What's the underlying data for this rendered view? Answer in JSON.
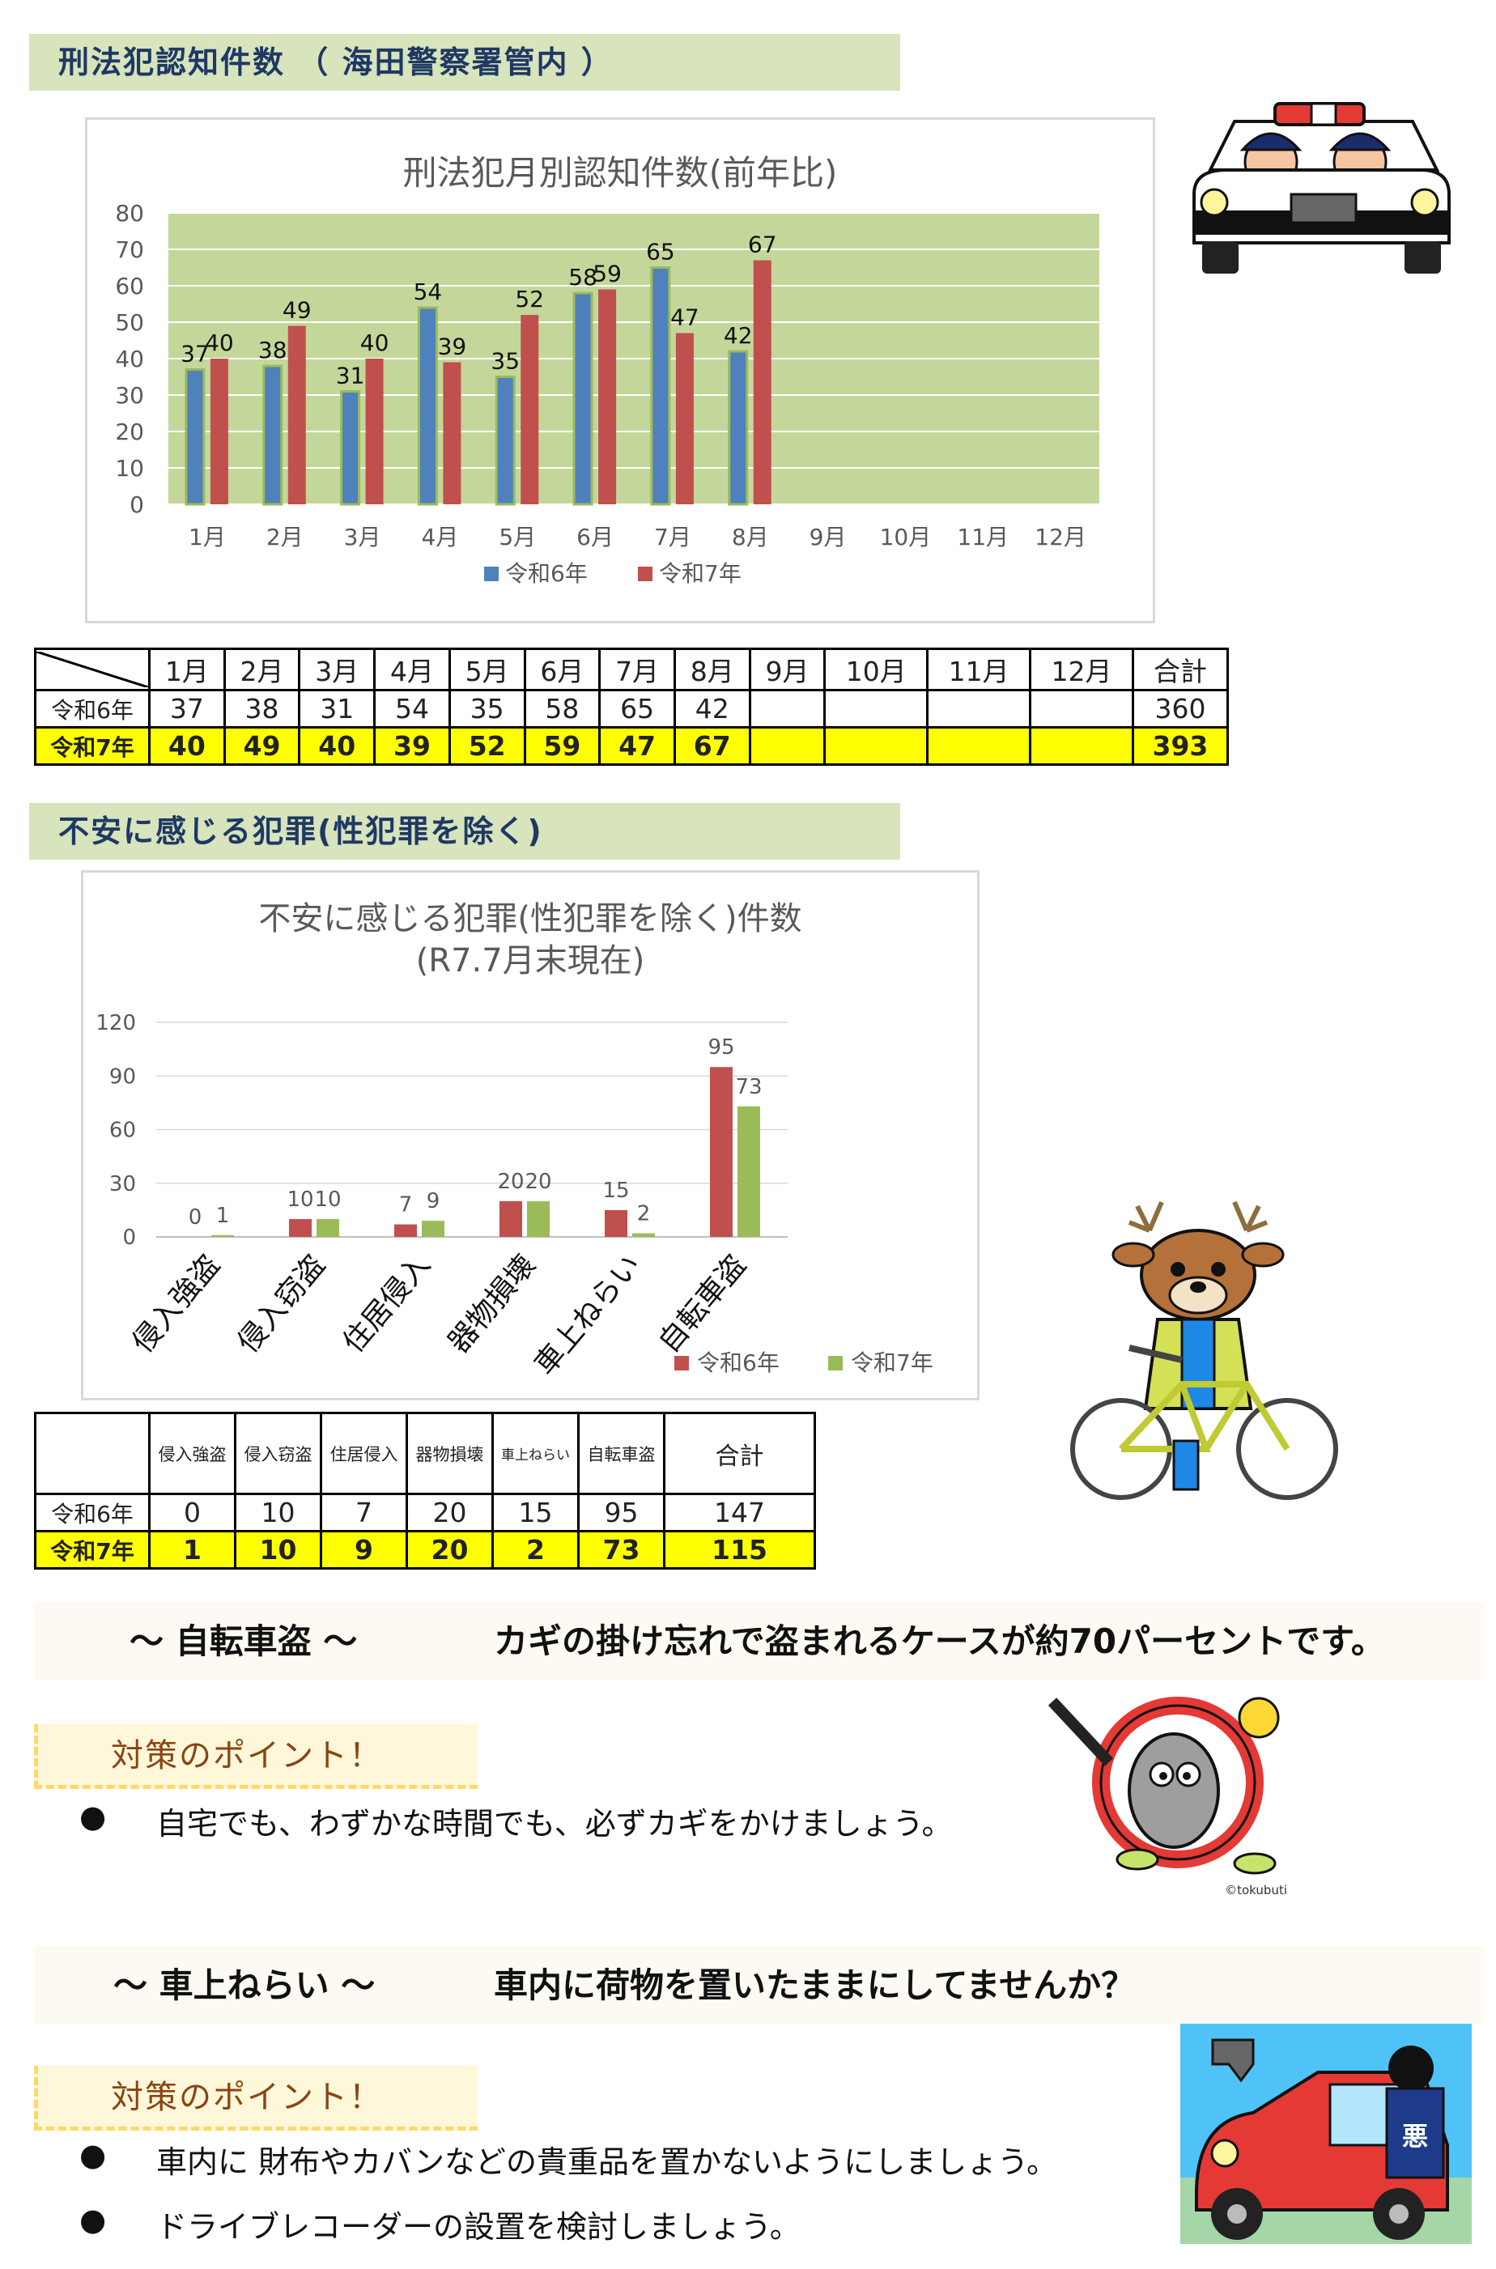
{
  "section1": {
    "title": "刑法犯認知件数 （ 海田警察署管内 ）"
  },
  "section2": {
    "title": "不安に感じる犯罪(性犯罪を除く)"
  },
  "chart_data": [
    {
      "type": "bar",
      "title": "刑法犯月別認知件数(前年比)",
      "categories": [
        "1月",
        "2月",
        "3月",
        "4月",
        "5月",
        "6月",
        "7月",
        "8月",
        "9月",
        "10月",
        "11月",
        "12月"
      ],
      "series": [
        {
          "name": "令和6年",
          "values": [
            37,
            38,
            31,
            54,
            35,
            58,
            65,
            42,
            null,
            null,
            null,
            null
          ]
        },
        {
          "name": "令和7年",
          "values": [
            40,
            49,
            40,
            39,
            52,
            59,
            47,
            67,
            null,
            null,
            null,
            null
          ]
        }
      ],
      "yticks": [
        "0",
        "10",
        "20",
        "30",
        "40",
        "50",
        "60",
        "70",
        "80"
      ],
      "ylim": [
        0,
        80
      ],
      "legend": "bottom",
      "colors": {
        "r6": "#4f81bd",
        "r7": "#c0504d",
        "r6_edge": "#9bbb59",
        "plot_bg": "#c4d79b"
      }
    },
    {
      "type": "bar",
      "title": "不安に感じる犯罪(性犯罪を除く)件数",
      "subtitle": "(R7.7月末現在)",
      "categories": [
        "侵入強盗",
        "侵入窃盗",
        "住居侵入",
        "器物損壊",
        "車上ねらい",
        "自転車盗"
      ],
      "series": [
        {
          "name": "令和6年",
          "values": [
            0,
            10,
            7,
            20,
            15,
            95
          ]
        },
        {
          "name": "令和7年",
          "values": [
            1,
            10,
            9,
            20,
            2,
            73
          ]
        }
      ],
      "yticks": [
        "0",
        "30",
        "60",
        "90",
        "120"
      ],
      "ylim": [
        0,
        120
      ],
      "legend": "bottom-right",
      "colors": {
        "r6": "#c0504d",
        "r7": "#9bbb59"
      }
    }
  ],
  "table1": {
    "headers": [
      "1月",
      "2月",
      "3月",
      "4月",
      "5月",
      "6月",
      "7月",
      "8月",
      "9月",
      "10月",
      "11月",
      "12月",
      "合計"
    ],
    "rows": [
      {
        "label": "令和6年",
        "cells": [
          "37",
          "38",
          "31",
          "54",
          "35",
          "58",
          "65",
          "42",
          "",
          "",
          "",
          "",
          "360"
        ]
      },
      {
        "label": "令和7年",
        "cells": [
          "40",
          "49",
          "40",
          "39",
          "52",
          "59",
          "47",
          "67",
          "",
          "",
          "",
          "",
          "393"
        ]
      }
    ]
  },
  "table2": {
    "headers": [
      "侵入強盗",
      "侵入窃盗",
      "住居侵入",
      "器物損壊",
      "車上ねらい",
      "自転車盗",
      "合計"
    ],
    "rows": [
      {
        "label": "令和6年",
        "cells": [
          "0",
          "10",
          "7",
          "20",
          "15",
          "95",
          "147"
        ]
      },
      {
        "label": "令和7年",
        "cells": [
          "1",
          "10",
          "9",
          "20",
          "2",
          "73",
          "115"
        ]
      }
    ]
  },
  "bike_theft": {
    "heading": "～ 自転車盗 ～",
    "message": "カギの掛け忘れで盗まれるケースが約70パーセントです。",
    "points_title": "対策のポイント！",
    "bullets": [
      "自宅でも、わずかな時間でも、必ずカギをかけましょう。"
    ],
    "credit": "©tokubuti"
  },
  "car_theft": {
    "heading": "～ 車上ねらい ～",
    "message": "車内に荷物を置いたままにしてませんか？",
    "points_title": "対策のポイント！",
    "bullets": [
      "車内に 財布やカバンなどの貴重品を置かないようにしましょう。",
      "ドライブレコーダーの設置を検討しましょう。"
    ],
    "thief_label": "悪"
  },
  "bullet_symbol": "●"
}
